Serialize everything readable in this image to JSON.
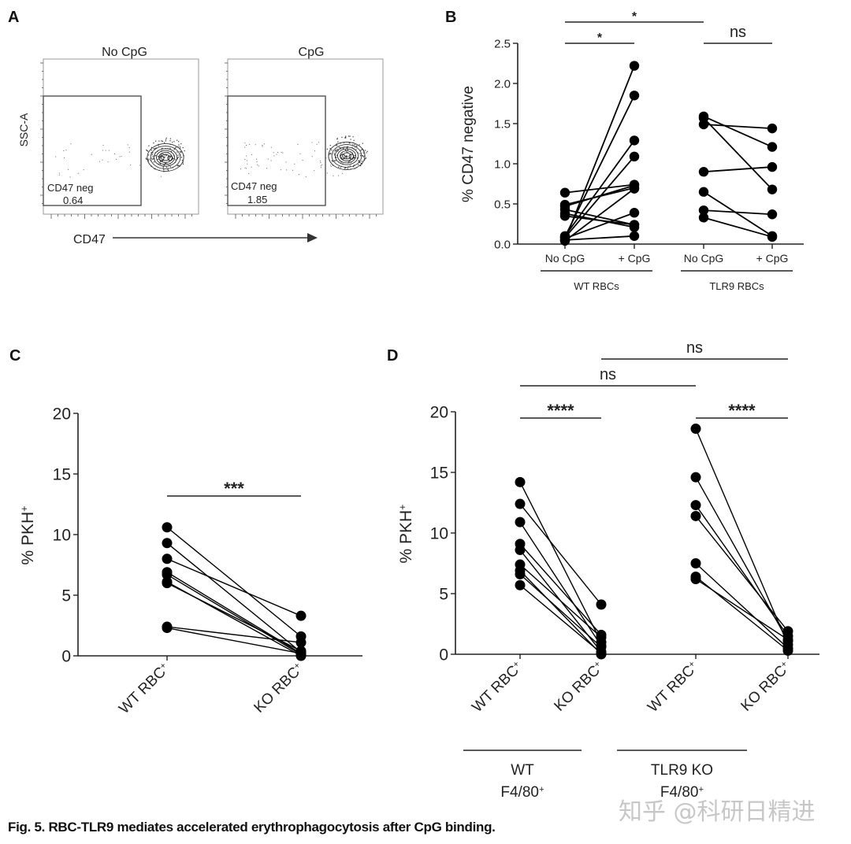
{
  "figure": {
    "caption": "Fig. 5. RBC-TLR9 mediates accelerated erythrophagocytosis after CpG binding.",
    "watermark": "知乎 @科研日精进"
  },
  "panels": {
    "A": {
      "letter": "A",
      "plots": [
        {
          "title": "No CpG",
          "gate_label": "CD47 neg",
          "gate_value": "0.64"
        },
        {
          "title": "CpG",
          "gate_label": "CD47 neg",
          "gate_value": "1.85"
        }
      ],
      "ylabel": "SSC-A",
      "xlabel": "CD47"
    },
    "B": {
      "letter": "B"
    },
    "C": {
      "letter": "C"
    },
    "D": {
      "letter": "D"
    }
  },
  "colors": {
    "ink": "#111111",
    "axis": "#222222",
    "dots": "#000000",
    "contour": "#333333"
  },
  "chart_data": [
    {
      "panel": "B",
      "type": "scatter",
      "subtype": "paired-before-after",
      "title": "",
      "ylabel": "% CD47 negative",
      "xlabel": "",
      "ylim": [
        0,
        2.5
      ],
      "yticks": [
        "0.0",
        "0.5",
        "1.0",
        "1.5",
        "2.0",
        "2.5"
      ],
      "categories": [
        "No CpG",
        "+ CpG",
        "No CpG",
        "+ CpG"
      ],
      "groups": [
        {
          "label": "WT RBCs",
          "categories": [
            0,
            1
          ]
        },
        {
          "label": "TLR9   RBCs",
          "categories": [
            2,
            3
          ]
        }
      ],
      "pairs": [
        {
          "group": 0,
          "values": [
            [
              0.64,
              0.74
            ],
            [
              0.05,
              2.22
            ],
            [
              0.09,
              1.85
            ],
            [
              0.1,
              1.29
            ],
            [
              0.08,
              1.09
            ],
            [
              0.49,
              0.7
            ],
            [
              0.04,
              0.69
            ],
            [
              0.43,
              0.24
            ],
            [
              0.38,
              0.21
            ],
            [
              0.07,
              0.39
            ],
            [
              0.35,
              0.24
            ],
            [
              0.05,
              0.1
            ],
            [
              0.47,
              0.73
            ]
          ]
        },
        {
          "group": 1,
          "values": [
            [
              1.59,
              1.21
            ],
            [
              1.49,
              1.44
            ],
            [
              1.57,
              0.68
            ],
            [
              0.9,
              0.96
            ],
            [
              0.65,
              0.1
            ],
            [
              0.42,
              0.37
            ],
            [
              0.33,
              0.09
            ]
          ]
        }
      ],
      "significance": [
        {
          "from": 0,
          "to": 1,
          "label": "*"
        },
        {
          "from": 0,
          "to": 2,
          "label": "*"
        },
        {
          "from": 2,
          "to": 3,
          "label": "ns"
        }
      ]
    },
    {
      "panel": "C",
      "type": "scatter",
      "subtype": "paired-before-after",
      "title": "",
      "ylabel": "% PKH",
      "ylabel_sup": "+",
      "xlabel": "",
      "ylim": [
        0,
        20
      ],
      "yticks": [
        "0",
        "5",
        "10",
        "15",
        "20"
      ],
      "categories": [
        "WT RBC",
        "KO RBC"
      ],
      "category_sup": "+",
      "groups": [],
      "pairs": [
        {
          "group": 0,
          "values": [
            [
              10.6,
              1.6
            ],
            [
              9.3,
              0.3
            ],
            [
              8.0,
              3.3
            ],
            [
              6.9,
              0.2
            ],
            [
              6.7,
              0.1
            ],
            [
              6.1,
              0.0
            ],
            [
              6.0,
              0.4
            ],
            [
              2.4,
              1.1
            ],
            [
              2.3,
              0.2
            ]
          ]
        }
      ],
      "significance": [
        {
          "from": 0,
          "to": 1,
          "label": "***"
        }
      ]
    },
    {
      "panel": "D",
      "type": "scatter",
      "subtype": "paired-before-after",
      "title": "",
      "ylabel": "% PKH",
      "ylabel_sup": "+",
      "xlabel": "",
      "ylim": [
        0,
        20
      ],
      "yticks": [
        "0",
        "5",
        "10",
        "15",
        "20"
      ],
      "categories": [
        "WT RBC",
        "KO RBC",
        "WT RBC",
        "KO RBC"
      ],
      "category_sup": "+",
      "groups": [
        {
          "label": "WT",
          "label2": "F4/80",
          "label2_sup": "+",
          "categories": [
            0,
            1
          ]
        },
        {
          "label": "TLR9 KO",
          "label2": "F4/80",
          "label2_sup": "+",
          "categories": [
            2,
            3
          ]
        }
      ],
      "pairs": [
        {
          "group": 0,
          "values": [
            [
              14.2,
              1.0
            ],
            [
              12.4,
              4.1
            ],
            [
              10.9,
              0.7
            ],
            [
              9.1,
              1.6
            ],
            [
              8.6,
              0.2
            ],
            [
              7.4,
              1.4
            ],
            [
              6.9,
              0.0
            ],
            [
              6.6,
              0.6
            ],
            [
              5.7,
              0.1
            ]
          ]
        },
        {
          "group": 1,
          "values": [
            [
              18.6,
              0.8
            ],
            [
              14.6,
              1.1
            ],
            [
              12.3,
              1.5
            ],
            [
              11.4,
              1.9
            ],
            [
              7.5,
              0.5
            ],
            [
              6.4,
              0.3
            ],
            [
              6.2,
              1.2
            ]
          ]
        }
      ],
      "significance": [
        {
          "from": 0,
          "to": 1,
          "label": "****"
        },
        {
          "from": 2,
          "to": 3,
          "label": "****"
        },
        {
          "from": 0,
          "to": 2,
          "label": "ns"
        },
        {
          "from": 1,
          "to": 3,
          "label": "ns"
        }
      ]
    }
  ]
}
